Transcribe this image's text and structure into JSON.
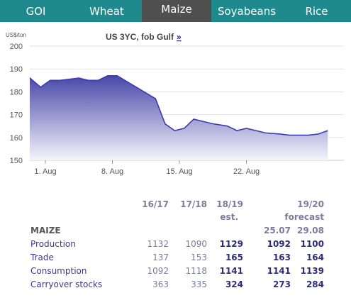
{
  "tabs": [
    {
      "label": "GOI",
      "active": false
    },
    {
      "label": "Wheat",
      "active": false
    },
    {
      "label": "Maize",
      "active": true
    },
    {
      "label": "Soyabeans",
      "active": false
    },
    {
      "label": "Rice",
      "active": false
    }
  ],
  "chart_data": {
    "type": "area",
    "title": "US 3YC, fob Gulf",
    "title_link": "»",
    "ylabel": "US$/ton",
    "xlabel": "",
    "ylim": [
      150,
      200
    ],
    "yticks": [
      150,
      160,
      170,
      180,
      190,
      200
    ],
    "xlim": [
      1,
      31
    ],
    "xticks": [
      {
        "x": 1,
        "label": "1. Aug"
      },
      {
        "x": 8,
        "label": "8. Aug"
      },
      {
        "x": 15,
        "label": "15. Aug"
      },
      {
        "x": 22,
        "label": "22. Aug"
      }
    ],
    "grid": true,
    "gradient_top": "#3535a0",
    "gradient_bottom": "#f4f4fb",
    "line_color": "#3a3ab0",
    "series": [
      {
        "x": [
          -2,
          0.5,
          1.5,
          2.5,
          3.5,
          4.5,
          5.5,
          6.5,
          7.5,
          8.5,
          10.5,
          12.5,
          13.5,
          14.5,
          15.5,
          16.5,
          17.5,
          18.5,
          20,
          21,
          22,
          23,
          24,
          25.5,
          26.5,
          27.5,
          28.5,
          29.5,
          30.5
        ],
        "values": [
          191,
          182,
          185,
          185,
          185.5,
          186,
          185,
          185,
          187,
          187,
          182,
          177,
          166,
          163,
          164,
          168,
          167,
          166,
          165,
          163,
          164,
          163,
          162,
          161.5,
          161,
          161,
          161,
          161.5,
          163
        ]
      }
    ]
  },
  "table": {
    "headers": [
      {
        "line1": "16/17",
        "line2": ""
      },
      {
        "line1": "17/18",
        "line2": ""
      },
      {
        "line1": "18/19",
        "line2": "est."
      },
      {
        "line1": "19/20",
        "line2": "forecast"
      }
    ],
    "section_label": "MAIZE",
    "subheaders": [
      "25.07",
      "29.08"
    ],
    "rows": [
      {
        "label": "Production",
        "values": [
          "1132",
          "1090",
          "1129",
          "1092",
          "1100"
        ]
      },
      {
        "label": "Trade",
        "values": [
          "137",
          "153",
          "165",
          "163",
          "164"
        ]
      },
      {
        "label": "Consumption",
        "values": [
          "1092",
          "1118",
          "1141",
          "1141",
          "1139"
        ]
      },
      {
        "label": "Carryover stocks",
        "values": [
          "363",
          "335",
          "324",
          "273",
          "284"
        ]
      }
    ]
  }
}
